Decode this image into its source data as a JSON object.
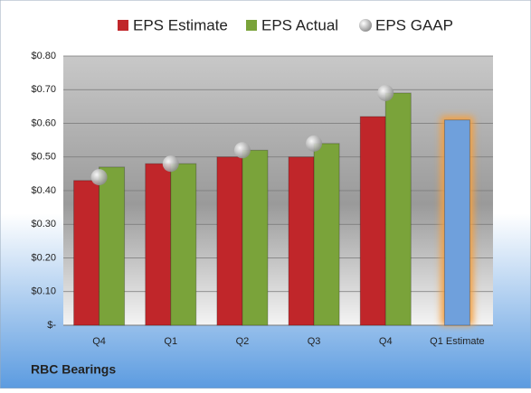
{
  "chart_data": {
    "type": "bar",
    "title": "RBC Bearings",
    "categories": [
      "Q4",
      "Q1",
      "Q2",
      "Q3",
      "Q4",
      "Q1 Estimate"
    ],
    "series": [
      {
        "name": "EPS Estimate",
        "color": "#c0262a",
        "values": [
          0.43,
          0.48,
          0.5,
          0.5,
          0.62,
          0.61
        ],
        "point_colors": [
          "#c0262a",
          "#c0262a",
          "#c0262a",
          "#c0262a",
          "#c0262a",
          "#6fa0dc"
        ]
      },
      {
        "name": "EPS Actual",
        "color": "#7aa33a",
        "values": [
          0.47,
          0.48,
          0.52,
          0.54,
          0.69,
          null
        ]
      },
      {
        "name": "EPS GAAP",
        "color": "#a6a6a6",
        "marker": "circle",
        "values": [
          0.44,
          0.48,
          0.52,
          0.54,
          0.69,
          null
        ]
      }
    ],
    "ylim": [
      0,
      0.8
    ],
    "yticks": [
      {
        "value": 0,
        "label": "$-"
      },
      {
        "value": 0.1,
        "label": "$0.10"
      },
      {
        "value": 0.2,
        "label": "$0.20"
      },
      {
        "value": 0.3,
        "label": "$0.30"
      },
      {
        "value": 0.4,
        "label": "$0.40"
      },
      {
        "value": 0.5,
        "label": "$0.50"
      },
      {
        "value": 0.6,
        "label": "$0.60"
      },
      {
        "value": 0.7,
        "label": "$0.70"
      },
      {
        "value": 0.8,
        "label": "$0.80"
      }
    ],
    "grid": true,
    "legend": "top"
  }
}
